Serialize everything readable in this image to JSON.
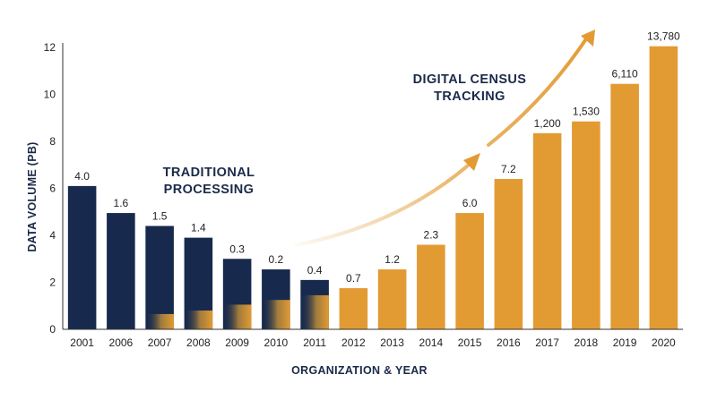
{
  "chart_data": {
    "type": "bar",
    "title": "",
    "xlabel": "ORGANIZATION & YEAR",
    "ylabel": "DATA VOLUME (PB)",
    "ylim": [
      0,
      12
    ],
    "yticks": [
      "0",
      "2",
      "4",
      "6",
      "8",
      "10",
      "12"
    ],
    "grid": false,
    "categories": [
      "2001",
      "2006",
      "2007",
      "2008",
      "2009",
      "2010",
      "2011",
      "2012",
      "2013",
      "2014",
      "2015",
      "2016",
      "2017",
      "2018",
      "2019",
      "2020"
    ],
    "values": [
      6.1,
      4.95,
      4.4,
      3.9,
      3.0,
      2.55,
      2.1,
      1.75,
      2.55,
      3.6,
      4.95,
      6.4,
      8.35,
      8.85,
      10.45,
      12.05
    ],
    "data_labels": [
      "4.0",
      "1.6",
      "1.5",
      "1.4",
      "0.3",
      "0.2",
      "0.4",
      "0.7",
      "1.2",
      "2.3",
      "6.0",
      "7.2",
      "1,200",
      "1,530",
      "6,110",
      "13,780"
    ],
    "overlay_values": [
      0,
      0,
      0.65,
      0.8,
      1.05,
      1.25,
      1.45,
      0,
      0,
      0,
      0,
      0,
      0,
      0,
      0,
      0
    ],
    "bar_colors": [
      "navy",
      "navy",
      "navy",
      "navy",
      "navy",
      "navy",
      "navy",
      "orange",
      "orange",
      "orange",
      "orange",
      "orange",
      "orange",
      "orange",
      "orange",
      "orange"
    ],
    "colors": {
      "navy": "#172a4d",
      "orange": "#e29b33",
      "text": "#222222",
      "annotation": "#1b2a4a"
    },
    "annotations": [
      {
        "lines": [
          "TRADITIONAL",
          "PROCESSING"
        ]
      },
      {
        "lines": [
          "DIGITAL CENSUS",
          "TRACKING"
        ]
      }
    ]
  }
}
